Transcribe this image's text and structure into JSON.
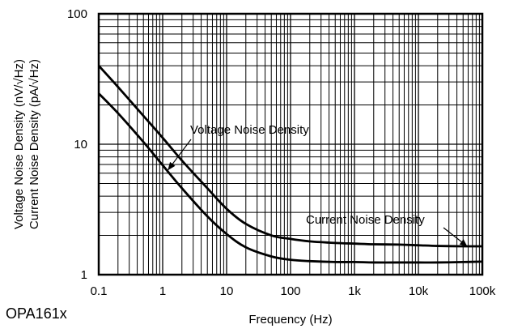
{
  "chart_data": {
    "type": "line",
    "xscale": "log",
    "yscale": "log",
    "xlim": [
      0.1,
      100000
    ],
    "ylim": [
      1,
      100
    ],
    "xticks": [
      {
        "value": 0.1,
        "label": "0.1"
      },
      {
        "value": 1,
        "label": "1"
      },
      {
        "value": 10,
        "label": "10"
      },
      {
        "value": 100,
        "label": "100"
      },
      {
        "value": 1000,
        "label": "1k"
      },
      {
        "value": 10000,
        "label": "10k"
      },
      {
        "value": 100000,
        "label": "100k"
      }
    ],
    "yticks": [
      {
        "value": 1,
        "label": "1"
      },
      {
        "value": 10,
        "label": "10"
      },
      {
        "value": 100,
        "label": "100"
      }
    ],
    "xlabel": "Frequency (Hz)",
    "ylabel_lines": [
      "Voltage Noise Density (nV/√Hz)",
      "Current Noise Density (pA/√Hz)"
    ],
    "grid": true,
    "footer_label": "OPA161x",
    "series": [
      {
        "name": "Voltage Noise Density",
        "x": [
          0.1,
          0.2,
          0.5,
          1,
          2,
          5,
          10,
          20,
          50,
          100,
          200,
          500,
          1000,
          2000,
          5000,
          10000,
          20000,
          50000,
          100000
        ],
        "y": [
          24.5,
          17.3,
          10.4,
          6.9,
          4.6,
          2.8,
          2.05,
          1.62,
          1.38,
          1.3,
          1.27,
          1.25,
          1.25,
          1.24,
          1.24,
          1.24,
          1.24,
          1.25,
          1.26
        ]
      },
      {
        "name": "Current Noise Density",
        "x": [
          0.1,
          0.2,
          0.5,
          1,
          2,
          5,
          10,
          20,
          50,
          100,
          200,
          500,
          1000,
          2000,
          5000,
          10000,
          20000,
          50000,
          100000
        ],
        "y": [
          40,
          27.5,
          16.5,
          11.2,
          7.5,
          4.6,
          3.2,
          2.45,
          2.0,
          1.88,
          1.8,
          1.75,
          1.73,
          1.71,
          1.7,
          1.68,
          1.66,
          1.65,
          1.65
        ]
      }
    ],
    "annotations": [
      {
        "text": "Voltage Noise Density",
        "series": "Voltage Noise Density",
        "arrow_to": {
          "x": 1.2,
          "y": 6.3
        }
      },
      {
        "text": "Current Noise Density",
        "series": "Current Noise Density",
        "arrow_to": {
          "x": 58000,
          "y": 1.65
        }
      }
    ]
  }
}
